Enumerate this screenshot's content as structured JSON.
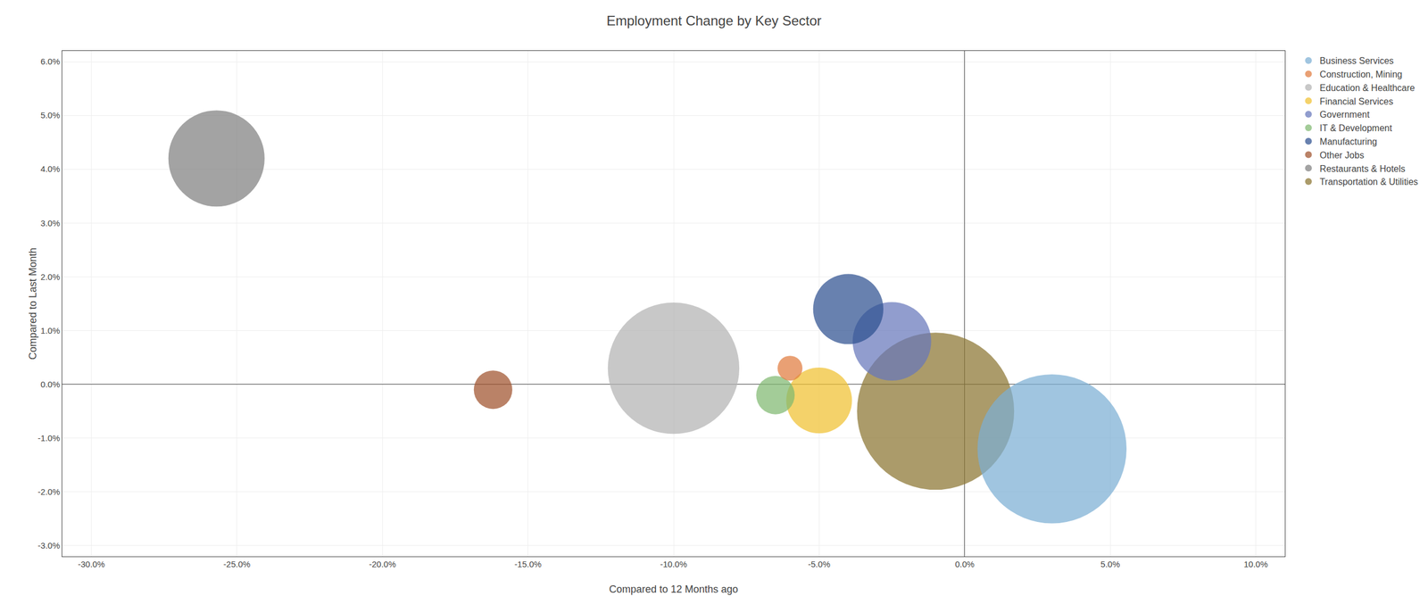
{
  "chart_data": {
    "type": "scatter",
    "title": "Employment Change by Key Sector",
    "xlabel": "Compared to 12 Months ago",
    "ylabel": "Compared to Last Month",
    "series": [
      {
        "name": "Business Services",
        "color": "#7bafd4",
        "x": [
          0.03
        ],
        "values": [
          -0.012
        ],
        "sizes": [
          18000
        ]
      },
      {
        "name": "Construction, Mining",
        "color": "#e07b3f",
        "x": [
          -0.06
        ],
        "values": [
          0.003
        ],
        "sizes": [
          500
        ]
      },
      {
        "name": "Education & Healthcare",
        "color": "#b3b3b3",
        "x": [
          -0.1
        ],
        "values": [
          0.003
        ],
        "sizes": [
          14000
        ]
      },
      {
        "name": "Financial Services",
        "color": "#f0c030",
        "x": [
          -0.05
        ],
        "values": [
          -0.003
        ],
        "sizes": [
          3500
        ]
      },
      {
        "name": "Government",
        "color": "#6677bb",
        "x": [
          -0.025
        ],
        "values": [
          0.008
        ],
        "sizes": [
          5000
        ]
      },
      {
        "name": "IT & Development",
        "color": "#80b870",
        "x": [
          -0.065
        ],
        "values": [
          -0.002
        ],
        "sizes": [
          1200
        ]
      },
      {
        "name": "Manufacturing",
        "color": "#2e5090",
        "x": [
          -0.04
        ],
        "values": [
          0.014
        ],
        "sizes": [
          4000
        ]
      },
      {
        "name": "Other Jobs",
        "color": "#a0522d",
        "x": [
          -0.162
        ],
        "values": [
          -0.001
        ],
        "sizes": [
          1200
        ]
      },
      {
        "name": "Restaurants & Hotels",
        "color": "#808080",
        "x": [
          -0.257
        ],
        "values": [
          0.042
        ],
        "sizes": [
          7500
        ]
      },
      {
        "name": "Transportation & Utilities",
        "color": "#8b7530",
        "x": [
          -0.01
        ],
        "values": [
          -0.005
        ],
        "sizes": [
          20000
        ]
      }
    ],
    "xlim": [
      -0.31,
      0.11
    ],
    "ylim": [
      -0.032,
      0.062
    ],
    "xticks": [
      {
        "value": -0.3,
        "label": "-30.0%"
      },
      {
        "value": -0.25,
        "label": "-25.0%"
      },
      {
        "value": -0.2,
        "label": "-20.0%"
      },
      {
        "value": -0.15,
        "label": "-15.0%"
      },
      {
        "value": -0.1,
        "label": "-10.0%"
      },
      {
        "value": -0.05,
        "label": "-5.0%"
      },
      {
        "value": 0.0,
        "label": "0.0%"
      },
      {
        "value": 0.05,
        "label": "5.0%"
      },
      {
        "value": 0.1,
        "label": "10.0%"
      }
    ],
    "yticks": [
      {
        "value": -0.03,
        "label": "-3.0%"
      },
      {
        "value": -0.02,
        "label": "-2.0%"
      },
      {
        "value": -0.01,
        "label": "-1.0%"
      },
      {
        "value": 0.0,
        "label": "0.0%"
      },
      {
        "value": 0.01,
        "label": "1.0%"
      },
      {
        "value": 0.02,
        "label": "2.0%"
      },
      {
        "value": 0.03,
        "label": "3.0%"
      },
      {
        "value": 0.04,
        "label": "4.0%"
      },
      {
        "value": 0.05,
        "label": "5.0%"
      },
      {
        "value": 0.06,
        "label": "6.0%"
      }
    ],
    "grid": true,
    "legend": "right"
  }
}
